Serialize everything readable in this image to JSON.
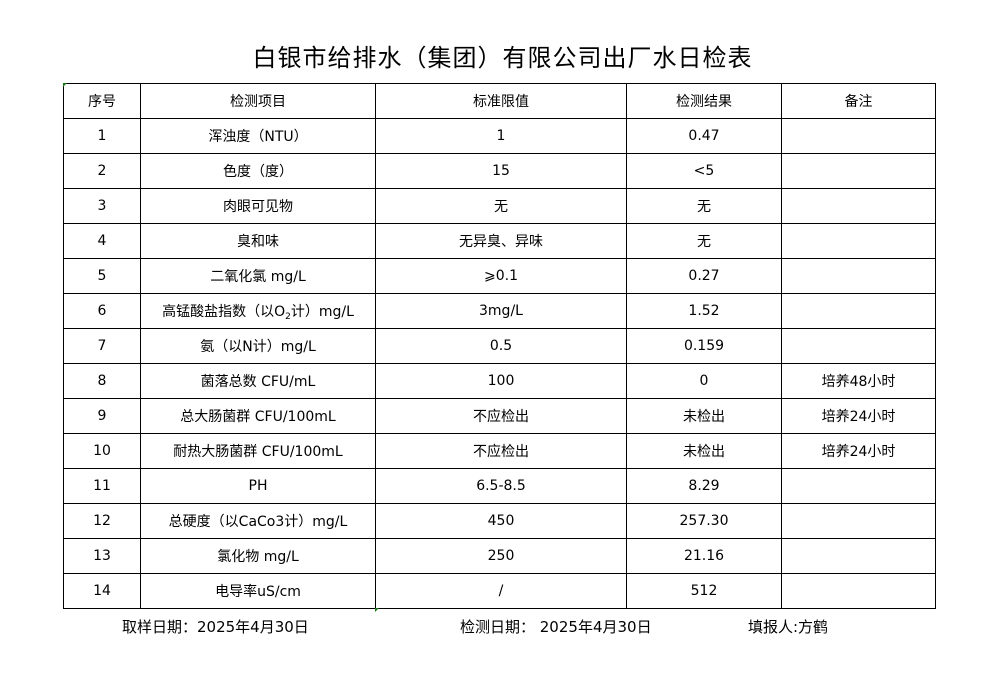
{
  "title": "白银市给排水（集团）有限公司出厂水日检表",
  "headers": [
    "序号",
    "检测项目",
    "标准限值",
    "检测结果",
    "备注"
  ],
  "rows": [
    {
      "no": "1",
      "item": "浑浊度（NTU）",
      "limit": "1",
      "result": "0.47",
      "note": ""
    },
    {
      "no": "2",
      "item": "色度（度）",
      "limit": "15",
      "result": "<5",
      "note": ""
    },
    {
      "no": "3",
      "item": "肉眼可见物",
      "limit": "无",
      "result": "无",
      "note": ""
    },
    {
      "no": "4",
      "item": "臭和味",
      "limit": "无异臭、异味",
      "result": "无",
      "note": ""
    },
    {
      "no": "5",
      "item": "二氧化氯 mg/L",
      "limit": "⩾0.1",
      "result": "0.27",
      "note": ""
    },
    {
      "no": "6",
      "item": "高锰酸盐指数（以O",
      "item_sub": "2",
      "item_post": "计）mg/L",
      "limit": "3mg/L",
      "result": "1.52",
      "note": ""
    },
    {
      "no": "7",
      "item": "氨（以N计）mg/L",
      "limit": "0.5",
      "result": "0.159",
      "note": ""
    },
    {
      "no": "8",
      "item": "菌落总数 CFU/mL",
      "limit": "100",
      "result": "0",
      "note": "培养48小时"
    },
    {
      "no": "9",
      "item": "总大肠菌群 CFU/100mL",
      "limit": "不应检出",
      "result": "未检出",
      "note": "培养24小时"
    },
    {
      "no": "10",
      "item": "耐热大肠菌群 CFU/100mL",
      "limit": "不应检出",
      "result": "未检出",
      "note": "培养24小时"
    },
    {
      "no": "11",
      "item": "PH",
      "limit": "6.5-8.5",
      "result": "8.29",
      "note": ""
    },
    {
      "no": "12",
      "item": "总硬度（以CaCo3计）mg/L",
      "limit": "450",
      "result": "257.30",
      "note": ""
    },
    {
      "no": "13",
      "item": "氯化物 mg/L",
      "limit": "250",
      "result": "21.16",
      "note": ""
    },
    {
      "no": "14",
      "item": "电导率uS/cm",
      "limit": "/",
      "result": "512",
      "note": ""
    }
  ],
  "footer": {
    "sample_date": "取样日期：2025年4月30日",
    "test_date": "检测日期： 2025年4月30日",
    "reporter": "填报人:方鹤"
  },
  "colors": {
    "cell_marker": "#1a7a1a"
  }
}
